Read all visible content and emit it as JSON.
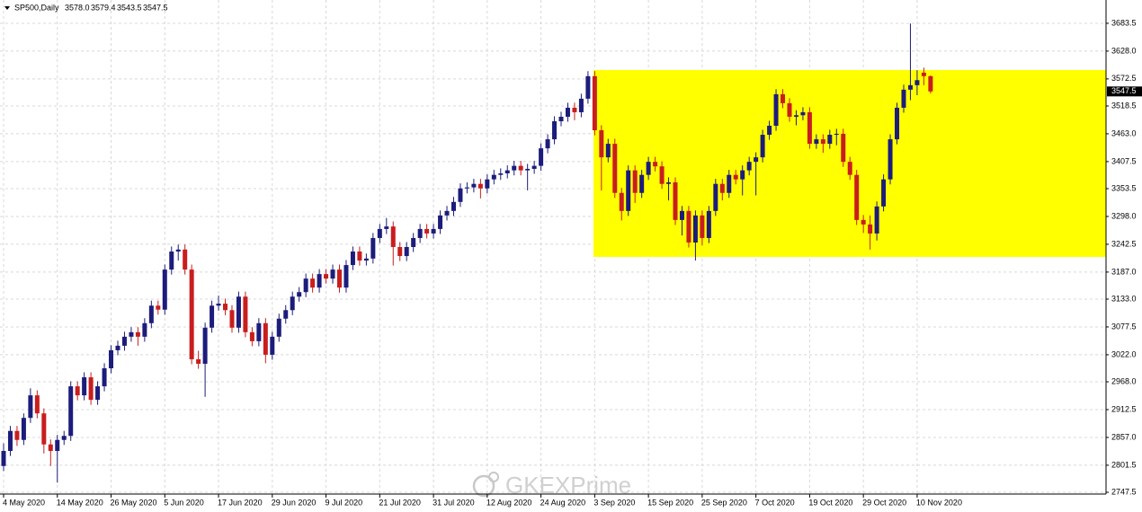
{
  "chart_data": {
    "type": "candlestick",
    "title": "SP500,Daily",
    "ohlc_labels": [
      "3578.0",
      "3579.4",
      "3543.5",
      "3547.5"
    ],
    "watermark": "GKEXPrime",
    "up_color": "#1c1c7c",
    "down_color": "#c81e1e",
    "grid": true,
    "ylim": [
      2744,
      3730
    ],
    "yticks": [
      3683.5,
      {
        "value": 3628,
        "label": "3628.0"
      },
      3572.5,
      3518.5,
      {
        "value": 3463,
        "label": "3463.0"
      },
      3407.5,
      3353.5,
      {
        "value": 3298,
        "label": "3298.0"
      },
      3242.5,
      {
        "value": 3187,
        "label": "3187.0"
      },
      {
        "value": 3133,
        "label": "3133.0"
      },
      3077.5,
      {
        "value": 3022,
        "label": "3022.0"
      },
      {
        "value": 2968,
        "label": "2968.0"
      },
      2912.5,
      {
        "value": 2857,
        "label": "2857.0"
      },
      2801.5,
      2747.5
    ],
    "categories": [
      "4 May 2020",
      null,
      null,
      null,
      null,
      null,
      null,
      null,
      "14 May 2020",
      null,
      null,
      null,
      null,
      null,
      null,
      null,
      "26 May 2020",
      null,
      null,
      null,
      null,
      null,
      null,
      null,
      "5 Jun 2020",
      null,
      null,
      null,
      null,
      null,
      null,
      null,
      "17 Jun 2020",
      null,
      null,
      null,
      null,
      null,
      null,
      null,
      "29 Jun 2020",
      null,
      null,
      null,
      null,
      null,
      null,
      null,
      "9 Jul 2020",
      null,
      null,
      null,
      null,
      null,
      null,
      null,
      "21 Jul 2020",
      null,
      null,
      null,
      null,
      null,
      null,
      null,
      "31 Jul 2020",
      null,
      null,
      null,
      null,
      null,
      null,
      null,
      "12 Aug 2020",
      null,
      null,
      null,
      null,
      null,
      null,
      null,
      "24 Aug 2020",
      null,
      null,
      null,
      null,
      null,
      null,
      null,
      "3 Sep 2020",
      null,
      null,
      null,
      null,
      null,
      null,
      null,
      "15 Sep 2020",
      null,
      null,
      null,
      null,
      null,
      null,
      null,
      "25 Sep 2020",
      null,
      null,
      null,
      null,
      null,
      null,
      null,
      "7 Oct 2020",
      null,
      null,
      null,
      null,
      null,
      null,
      null,
      "19 Oct 2020",
      null,
      null,
      null,
      null,
      null,
      null,
      null,
      "29 Oct 2020",
      null,
      null,
      null,
      null,
      null,
      null,
      null,
      "10 Nov 2020",
      null,
      null
    ],
    "open": [
      2800,
      2830,
      2870,
      2852,
      2896,
      2941,
      2905,
      2843,
      2830,
      2852,
      2860,
      2959,
      2941,
      2977,
      2932,
      2959,
      2995,
      3031,
      3040,
      3058,
      3067,
      3058,
      3085,
      3120,
      3112,
      3192,
      3228,
      3232,
      3192,
      3013,
      3004,
      3076,
      3120,
      3124,
      3111,
      3076,
      3138,
      3067,
      3049,
      3085,
      3022,
      3058,
      3094,
      3111,
      3138,
      3147,
      3174,
      3156,
      3183,
      3174,
      3192,
      3156,
      3201,
      3228,
      3210,
      3214,
      3255,
      3273,
      3278,
      3237,
      3219,
      3237,
      3255,
      3273,
      3264,
      3273,
      3300,
      3309,
      3327,
      3354,
      3356,
      3363,
      3354,
      3372,
      3381,
      3384,
      3390,
      3399,
      3390,
      3393,
      3399,
      3434,
      3452,
      3488,
      3497,
      3515,
      3506,
      3533,
      3578,
      3470,
      3416,
      3443,
      3345,
      3309,
      3390,
      3345,
      3381,
      3407,
      3398,
      3363,
      3366,
      3291,
      3309,
      3246,
      3300,
      3255,
      3309,
      3363,
      3345,
      3381,
      3372,
      3390,
      3407,
      3416,
      3461,
      3479,
      3542,
      3524,
      3497,
      3500,
      3506,
      3443,
      3452,
      3443,
      3461,
      3463,
      3407,
      3381,
      3291,
      3282,
      3264,
      3318,
      3372,
      3452,
      3515,
      3551,
      3560,
      3585,
      3578
    ],
    "high": [
      2845,
      2880,
      2880,
      2905,
      2955,
      2951,
      2915,
      2853,
      2862,
      2870,
      2969,
      2969,
      2987,
      2987,
      2969,
      3005,
      3041,
      3050,
      3068,
      3077,
      3077,
      3095,
      3130,
      3130,
      3202,
      3238,
      3242,
      3242,
      3202,
      3030,
      3086,
      3130,
      3140,
      3134,
      3121,
      3148,
      3148,
      3077,
      3095,
      3095,
      3068,
      3104,
      3121,
      3148,
      3157,
      3184,
      3184,
      3193,
      3193,
      3202,
      3202,
      3211,
      3238,
      3238,
      3224,
      3265,
      3283,
      3295,
      3288,
      3247,
      3247,
      3265,
      3283,
      3283,
      3283,
      3310,
      3319,
      3337,
      3364,
      3366,
      3373,
      3373,
      3382,
      3391,
      3394,
      3400,
      3409,
      3409,
      3403,
      3409,
      3444,
      3462,
      3498,
      3507,
      3525,
      3525,
      3543,
      3588,
      3588,
      3480,
      3453,
      3453,
      3355,
      3400,
      3400,
      3391,
      3417,
      3417,
      3408,
      3376,
      3376,
      3319,
      3319,
      3310,
      3310,
      3319,
      3373,
      3373,
      3391,
      3391,
      3400,
      3417,
      3426,
      3471,
      3489,
      3552,
      3552,
      3534,
      3510,
      3516,
      3516,
      3462,
      3462,
      3471,
      3473,
      3473,
      3417,
      3391,
      3301,
      3300,
      3328,
      3382,
      3462,
      3525,
      3561,
      3683,
      3590,
      3595,
      3579.4
    ],
    "low": [
      2790,
      2820,
      2840,
      2842,
      2886,
      2895,
      2825,
      2800,
      2767,
      2842,
      2850,
      2931,
      2931,
      2922,
      2922,
      2949,
      2985,
      3021,
      3030,
      3048,
      3040,
      3048,
      3075,
      3102,
      3102,
      3182,
      3210,
      3182,
      3003,
      2994,
      2938,
      3066,
      3110,
      3101,
      3066,
      3066,
      3057,
      3039,
      3039,
      3005,
      3012,
      3048,
      3084,
      3101,
      3128,
      3137,
      3146,
      3146,
      3164,
      3164,
      3146,
      3146,
      3191,
      3200,
      3200,
      3204,
      3245,
      3263,
      3200,
      3209,
      3209,
      3227,
      3245,
      3254,
      3254,
      3263,
      3290,
      3299,
      3317,
      3344,
      3346,
      3334,
      3344,
      3362,
      3371,
      3374,
      3380,
      3380,
      3350,
      3383,
      3389,
      3424,
      3442,
      3478,
      3487,
      3490,
      3496,
      3523,
      3460,
      3350,
      3406,
      3335,
      3290,
      3299,
      3325,
      3335,
      3371,
      3388,
      3353,
      3330,
      3281,
      3260,
      3236,
      3210,
      3240,
      3245,
      3299,
      3330,
      3335,
      3362,
      3340,
      3380,
      3340,
      3406,
      3451,
      3469,
      3514,
      3487,
      3480,
      3490,
      3433,
      3433,
      3425,
      3433,
      3440,
      3397,
      3371,
      3281,
      3265,
      3232,
      3250,
      3308,
      3362,
      3442,
      3505,
      3530,
      3540,
      3560,
      3543.5
    ],
    "close": [
      2830,
      2870,
      2852,
      2896,
      2941,
      2905,
      2843,
      2830,
      2852,
      2860,
      2959,
      2941,
      2977,
      2932,
      2959,
      2995,
      3031,
      3040,
      3058,
      3067,
      3058,
      3085,
      3120,
      3112,
      3192,
      3228,
      3232,
      3192,
      3013,
      3004,
      3076,
      3120,
      3124,
      3111,
      3076,
      3138,
      3067,
      3049,
      3085,
      3022,
      3058,
      3094,
      3111,
      3138,
      3147,
      3174,
      3156,
      3183,
      3174,
      3192,
      3156,
      3201,
      3228,
      3210,
      3214,
      3255,
      3273,
      3278,
      3237,
      3219,
      3237,
      3255,
      3273,
      3264,
      3273,
      3300,
      3309,
      3327,
      3354,
      3356,
      3363,
      3354,
      3372,
      3381,
      3384,
      3390,
      3399,
      3390,
      3393,
      3399,
      3434,
      3452,
      3488,
      3497,
      3515,
      3506,
      3533,
      3578,
      3470,
      3416,
      3443,
      3345,
      3309,
      3390,
      3345,
      3381,
      3407,
      3398,
      3363,
      3366,
      3291,
      3309,
      3246,
      3300,
      3255,
      3309,
      3363,
      3345,
      3381,
      3372,
      3390,
      3407,
      3416,
      3461,
      3479,
      3542,
      3524,
      3497,
      3500,
      3506,
      3443,
      3452,
      3443,
      3461,
      3463,
      3407,
      3381,
      3291,
      3282,
      3264,
      3318,
      3372,
      3452,
      3515,
      3551,
      3560,
      3570,
      3578,
      3547.5
    ]
  }
}
